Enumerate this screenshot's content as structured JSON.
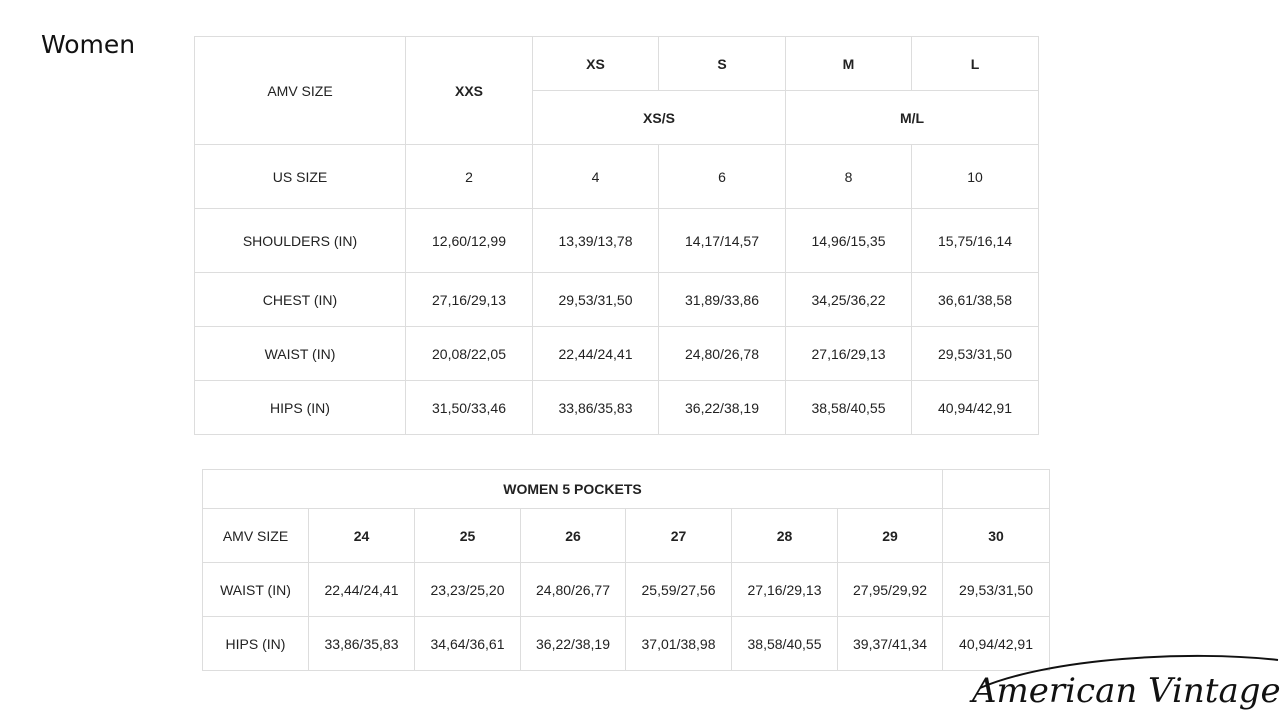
{
  "title": "Women",
  "size_table": {
    "amv_label": "AMV SIZE",
    "amv_sizes": [
      "XXS",
      "XS",
      "S",
      "M",
      "L"
    ],
    "grouped_sizes": [
      "XS/S",
      "M/L"
    ],
    "us_label": "US SIZE",
    "us_sizes": [
      "2",
      "4",
      "6",
      "8",
      "10"
    ],
    "rows": [
      {
        "label": "SHOULDERS (IN)",
        "values": [
          "12,60/12,99",
          "13,39/13,78",
          "14,17/14,57",
          "14,96/15,35",
          "15,75/16,14"
        ]
      },
      {
        "label": "CHEST (IN)",
        "values": [
          "27,16/29,13",
          "29,53/31,50",
          "31,89/33,86",
          "34,25/36,22",
          "36,61/38,58"
        ]
      },
      {
        "label": "WAIST (IN)",
        "values": [
          "20,08/22,05",
          "22,44/24,41",
          "24,80/26,78",
          "27,16/29,13",
          "29,53/31,50"
        ]
      },
      {
        "label": "HIPS (IN)",
        "values": [
          "31,50/33,46",
          "33,86/35,83",
          "36,22/38,19",
          "38,58/40,55",
          "40,94/42,91"
        ]
      }
    ]
  },
  "pockets_table": {
    "title": "WOMEN 5 POCKETS",
    "amv_label": "AMV SIZE",
    "sizes": [
      "24",
      "25",
      "26",
      "27",
      "28",
      "29",
      "30"
    ],
    "rows": [
      {
        "label": "WAIST (IN)",
        "values": [
          "22,44/24,41",
          "23,23/25,20",
          "24,80/26,77",
          "25,59/27,56",
          "27,16/29,13",
          "27,95/29,92",
          "29,53/31,50"
        ]
      },
      {
        "label": "HIPS (IN)",
        "values": [
          "33,86/35,83",
          "34,64/36,61",
          "36,22/38,19",
          "37,01/38,98",
          "38,58/40,55",
          "39,37/41,34",
          "40,94/42,91"
        ]
      }
    ]
  },
  "logo": "American Vintage"
}
